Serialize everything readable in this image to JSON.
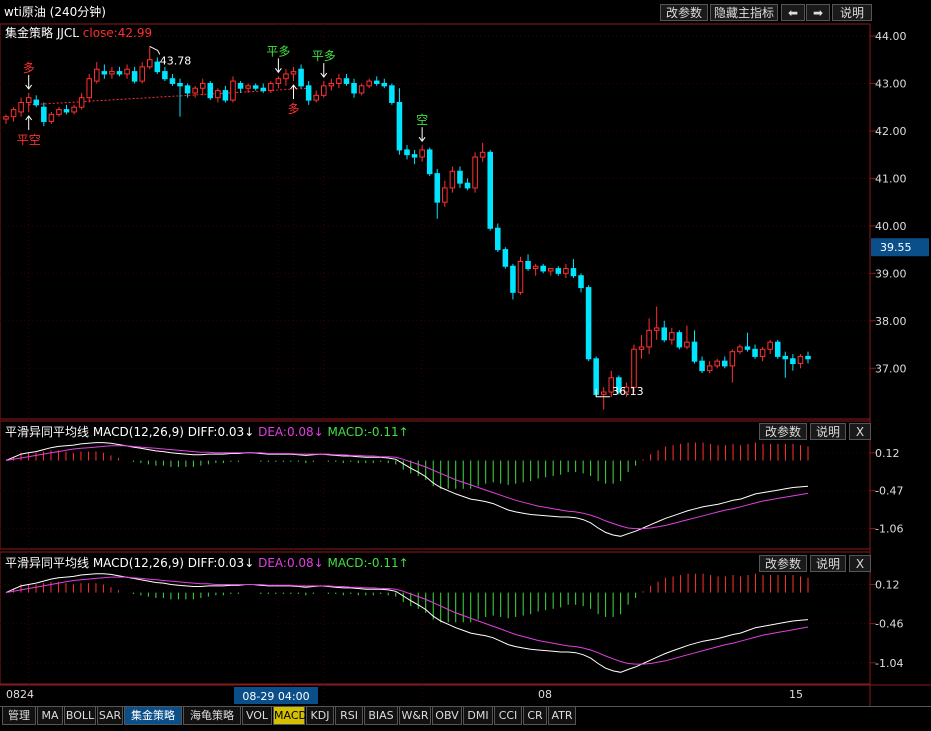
{
  "window_title": "wti原油 (240分钟)",
  "top_buttons": {
    "params": "改参数",
    "hide_indicator": "隐藏主指标",
    "left_arrow": "⬅",
    "right_arrow": "➡",
    "help": "说明"
  },
  "strategy_label": "集金策略 JJCL",
  "strategy_close": "close:42.99",
  "price_tag": "39.55",
  "macd_panels": [
    {
      "title": "平滑异同平均线 MACD(12,26,9)",
      "diff": "DIFF:0.03↓",
      "dea": "DEA:0.08↓",
      "macd": "MACD:-0.11↑",
      "btn_params": "改参数",
      "btn_help": "说明",
      "btn_close": "X"
    },
    {
      "title": "平滑异同平均线 MACD(12,26,9)",
      "diff": "DIFF:0.03↓",
      "dea": "DEA:0.08↓",
      "macd": "MACD:-0.11↑",
      "btn_params": "改参数",
      "btn_help": "说明",
      "btn_close": "X"
    }
  ],
  "time_axis": {
    "labels": [
      "0824",
      "08",
      "15"
    ],
    "cursor": "08-29 04:00"
  },
  "tabs": [
    "管理",
    "MA",
    "BOLL",
    "SAR",
    "集金策略",
    "海龟策略",
    "VOL",
    "MACD",
    "KDJ",
    "RSI",
    "BIAS",
    "W&R",
    "OBV",
    "DMI",
    "CCI",
    "CR",
    "ATR"
  ],
  "active_tab": "集金策略",
  "highlight_tab": "MACD",
  "colors": {
    "up": "#ff3030",
    "down": "#00e5ff",
    "dea": "#e040e0",
    "diff": "#ffffff",
    "hist_pos": "#ff3030",
    "hist_neg": "#40e040",
    "signal_green": "#40e040",
    "signal_red": "#ff3030"
  },
  "chart_data": [
    {
      "type": "candlestick",
      "title": "wti原油 (240分钟)",
      "ylim": [
        36.1,
        44.0
      ],
      "yticks": [
        "44.00",
        "43.00",
        "42.00",
        "41.00",
        "40.00",
        "39.00",
        "38.00",
        "37.00"
      ],
      "candles": [
        {
          "o": 42.25,
          "h": 42.35,
          "l": 42.15,
          "c": 42.3
        },
        {
          "o": 42.3,
          "h": 42.5,
          "l": 42.2,
          "c": 42.45
        },
        {
          "o": 42.4,
          "h": 42.7,
          "l": 42.3,
          "c": 42.6
        },
        {
          "o": 42.6,
          "h": 42.8,
          "l": 42.4,
          "c": 42.7
        },
        {
          "o": 42.65,
          "h": 42.75,
          "l": 42.5,
          "c": 42.55
        },
        {
          "o": 42.5,
          "h": 42.6,
          "l": 42.1,
          "c": 42.2
        },
        {
          "o": 42.2,
          "h": 42.4,
          "l": 42.15,
          "c": 42.35
        },
        {
          "o": 42.35,
          "h": 42.5,
          "l": 42.3,
          "c": 42.45
        },
        {
          "o": 42.45,
          "h": 42.55,
          "l": 42.35,
          "c": 42.4
        },
        {
          "o": 42.4,
          "h": 42.55,
          "l": 42.35,
          "c": 42.5
        },
        {
          "o": 42.5,
          "h": 42.8,
          "l": 42.45,
          "c": 42.7
        },
        {
          "o": 42.7,
          "h": 43.2,
          "l": 42.6,
          "c": 43.1
        },
        {
          "o": 43.05,
          "h": 43.45,
          "l": 43.0,
          "c": 43.3
        },
        {
          "o": 43.25,
          "h": 43.4,
          "l": 43.1,
          "c": 43.2
        },
        {
          "o": 43.2,
          "h": 43.35,
          "l": 43.1,
          "c": 43.25
        },
        {
          "o": 43.25,
          "h": 43.35,
          "l": 43.15,
          "c": 43.2
        },
        {
          "o": 43.2,
          "h": 43.4,
          "l": 43.1,
          "c": 43.3
        },
        {
          "o": 43.25,
          "h": 43.35,
          "l": 43.0,
          "c": 43.05
        },
        {
          "o": 43.05,
          "h": 43.45,
          "l": 43.0,
          "c": 43.35
        },
        {
          "o": 43.35,
          "h": 43.78,
          "l": 43.3,
          "c": 43.5
        },
        {
          "o": 43.45,
          "h": 43.55,
          "l": 43.2,
          "c": 43.25
        },
        {
          "o": 43.25,
          "h": 43.35,
          "l": 43.05,
          "c": 43.1
        },
        {
          "o": 43.1,
          "h": 43.2,
          "l": 42.95,
          "c": 43.0
        },
        {
          "o": 43.0,
          "h": 43.1,
          "l": 42.3,
          "c": 42.95
        },
        {
          "o": 42.95,
          "h": 43.0,
          "l": 42.7,
          "c": 42.8
        },
        {
          "o": 42.8,
          "h": 42.95,
          "l": 42.7,
          "c": 42.9
        },
        {
          "o": 42.9,
          "h": 43.1,
          "l": 42.75,
          "c": 43.0
        },
        {
          "o": 43.0,
          "h": 43.05,
          "l": 42.65,
          "c": 42.7
        },
        {
          "o": 42.7,
          "h": 42.9,
          "l": 42.6,
          "c": 42.85
        },
        {
          "o": 42.85,
          "h": 42.95,
          "l": 42.6,
          "c": 42.65
        },
        {
          "o": 42.65,
          "h": 43.15,
          "l": 42.6,
          "c": 43.05
        },
        {
          "o": 43.0,
          "h": 43.05,
          "l": 42.8,
          "c": 42.9
        },
        {
          "o": 42.9,
          "h": 43.0,
          "l": 42.8,
          "c": 42.95
        },
        {
          "o": 42.95,
          "h": 43.0,
          "l": 42.85,
          "c": 42.9
        },
        {
          "o": 42.9,
          "h": 43.0,
          "l": 42.8,
          "c": 42.85
        },
        {
          "o": 42.85,
          "h": 43.05,
          "l": 42.8,
          "c": 43.0
        },
        {
          "o": 43.0,
          "h": 43.15,
          "l": 42.9,
          "c": 43.1
        },
        {
          "o": 43.1,
          "h": 43.3,
          "l": 42.95,
          "c": 43.2
        },
        {
          "o": 43.2,
          "h": 43.35,
          "l": 43.05,
          "c": 43.25
        },
        {
          "o": 43.3,
          "h": 43.4,
          "l": 42.9,
          "c": 42.95
        },
        {
          "o": 42.95,
          "h": 43.05,
          "l": 42.55,
          "c": 42.65
        },
        {
          "o": 42.65,
          "h": 42.85,
          "l": 42.6,
          "c": 42.75
        },
        {
          "o": 42.75,
          "h": 43.05,
          "l": 42.7,
          "c": 42.95
        },
        {
          "o": 42.95,
          "h": 43.1,
          "l": 42.85,
          "c": 43.0
        },
        {
          "o": 43.0,
          "h": 43.2,
          "l": 42.9,
          "c": 43.1
        },
        {
          "o": 43.1,
          "h": 43.2,
          "l": 42.95,
          "c": 43.0
        },
        {
          "o": 43.0,
          "h": 43.1,
          "l": 42.7,
          "c": 42.8
        },
        {
          "o": 42.8,
          "h": 43.0,
          "l": 42.75,
          "c": 42.95
        },
        {
          "o": 42.95,
          "h": 43.1,
          "l": 42.9,
          "c": 43.05
        },
        {
          "o": 43.05,
          "h": 43.15,
          "l": 42.95,
          "c": 43.0
        },
        {
          "o": 43.0,
          "h": 43.1,
          "l": 42.9,
          "c": 42.95
        },
        {
          "o": 42.95,
          "h": 43.0,
          "l": 42.55,
          "c": 42.6
        },
        {
          "o": 42.6,
          "h": 42.9,
          "l": 41.5,
          "c": 41.6
        },
        {
          "o": 41.6,
          "h": 41.7,
          "l": 41.4,
          "c": 41.5
        },
        {
          "o": 41.5,
          "h": 41.6,
          "l": 41.3,
          "c": 41.45
        },
        {
          "o": 41.45,
          "h": 41.7,
          "l": 41.35,
          "c": 41.6
        },
        {
          "o": 41.6,
          "h": 41.65,
          "l": 41.05,
          "c": 41.1
        },
        {
          "o": 41.1,
          "h": 41.2,
          "l": 40.15,
          "c": 40.5
        },
        {
          "o": 40.5,
          "h": 40.95,
          "l": 40.4,
          "c": 40.8
        },
        {
          "o": 40.8,
          "h": 41.25,
          "l": 40.7,
          "c": 41.15
        },
        {
          "o": 41.15,
          "h": 41.25,
          "l": 40.8,
          "c": 40.9
        },
        {
          "o": 40.9,
          "h": 41.0,
          "l": 40.75,
          "c": 40.8
        },
        {
          "o": 40.8,
          "h": 41.55,
          "l": 40.7,
          "c": 41.45
        },
        {
          "o": 41.45,
          "h": 41.75,
          "l": 41.35,
          "c": 41.55
        },
        {
          "o": 41.55,
          "h": 41.6,
          "l": 39.9,
          "c": 39.95
        },
        {
          "o": 39.95,
          "h": 40.05,
          "l": 39.45,
          "c": 39.5
        },
        {
          "o": 39.5,
          "h": 39.55,
          "l": 39.1,
          "c": 39.15
        },
        {
          "o": 39.15,
          "h": 39.2,
          "l": 38.45,
          "c": 38.6
        },
        {
          "o": 38.6,
          "h": 39.35,
          "l": 38.55,
          "c": 39.25
        },
        {
          "o": 39.25,
          "h": 39.4,
          "l": 39.05,
          "c": 39.1
        },
        {
          "o": 39.1,
          "h": 39.2,
          "l": 38.95,
          "c": 39.15
        },
        {
          "o": 39.15,
          "h": 39.2,
          "l": 39.0,
          "c": 39.05
        },
        {
          "o": 39.05,
          "h": 39.1,
          "l": 38.95,
          "c": 39.1
        },
        {
          "o": 39.1,
          "h": 39.15,
          "l": 38.95,
          "c": 39.0
        },
        {
          "o": 39.0,
          "h": 39.2,
          "l": 38.9,
          "c": 39.1
        },
        {
          "o": 39.1,
          "h": 39.3,
          "l": 38.9,
          "c": 38.95
        },
        {
          "o": 38.95,
          "h": 39.0,
          "l": 38.6,
          "c": 38.7
        },
        {
          "o": 38.7,
          "h": 38.75,
          "l": 37.15,
          "c": 37.2
        },
        {
          "o": 37.2,
          "h": 37.25,
          "l": 36.4,
          "c": 36.45
        },
        {
          "o": 36.45,
          "h": 36.6,
          "l": 36.13,
          "c": 36.5
        },
        {
          "o": 36.5,
          "h": 36.95,
          "l": 36.4,
          "c": 36.8
        },
        {
          "o": 36.8,
          "h": 36.85,
          "l": 36.45,
          "c": 36.5
        },
        {
          "o": 36.5,
          "h": 36.7,
          "l": 36.4,
          "c": 36.6
        },
        {
          "o": 36.6,
          "h": 37.5,
          "l": 36.5,
          "c": 37.4
        },
        {
          "o": 37.4,
          "h": 37.7,
          "l": 37.2,
          "c": 37.45
        },
        {
          "o": 37.45,
          "h": 38.05,
          "l": 37.3,
          "c": 37.8
        },
        {
          "o": 37.8,
          "h": 38.3,
          "l": 37.6,
          "c": 37.85
        },
        {
          "o": 37.85,
          "h": 38.0,
          "l": 37.55,
          "c": 37.6
        },
        {
          "o": 37.6,
          "h": 37.85,
          "l": 37.5,
          "c": 37.75
        },
        {
          "o": 37.75,
          "h": 37.8,
          "l": 37.4,
          "c": 37.45
        },
        {
          "o": 37.45,
          "h": 37.9,
          "l": 37.4,
          "c": 37.55
        },
        {
          "o": 37.55,
          "h": 37.8,
          "l": 37.1,
          "c": 37.15
        },
        {
          "o": 37.15,
          "h": 37.25,
          "l": 36.9,
          "c": 36.95
        },
        {
          "o": 36.95,
          "h": 37.15,
          "l": 36.9,
          "c": 37.05
        },
        {
          "o": 37.05,
          "h": 37.2,
          "l": 37.0,
          "c": 37.15
        },
        {
          "o": 37.15,
          "h": 37.25,
          "l": 37.0,
          "c": 37.05
        },
        {
          "o": 37.05,
          "h": 37.4,
          "l": 36.7,
          "c": 37.35
        },
        {
          "o": 37.35,
          "h": 37.5,
          "l": 37.3,
          "c": 37.45
        },
        {
          "o": 37.45,
          "h": 37.75,
          "l": 37.35,
          "c": 37.4
        },
        {
          "o": 37.4,
          "h": 37.5,
          "l": 37.2,
          "c": 37.25
        },
        {
          "o": 37.25,
          "h": 37.45,
          "l": 37.15,
          "c": 37.4
        },
        {
          "o": 37.4,
          "h": 37.6,
          "l": 37.3,
          "c": 37.55
        },
        {
          "o": 37.55,
          "h": 37.6,
          "l": 37.2,
          "c": 37.25
        },
        {
          "o": 37.25,
          "h": 37.35,
          "l": 36.8,
          "c": 37.2
        },
        {
          "o": 37.2,
          "h": 37.3,
          "l": 36.95,
          "c": 37.1
        },
        {
          "o": 37.1,
          "h": 37.3,
          "l": 37.0,
          "c": 37.25
        },
        {
          "o": 37.25,
          "h": 37.35,
          "l": 37.1,
          "c": 37.2
        }
      ],
      "annotations": {
        "high_label": "43.78",
        "low_label": "36.13",
        "high_index": 19,
        "low_index": 78
      },
      "signals": [
        {
          "index": 3,
          "text": "多",
          "color": "red",
          "pos": "above"
        },
        {
          "index": 3,
          "text": "平空",
          "color": "red",
          "pos": "below"
        },
        {
          "index": 36,
          "text": "平多",
          "color": "green",
          "pos": "above"
        },
        {
          "index": 38,
          "text": "多",
          "color": "red",
          "pos": "below"
        },
        {
          "index": 42,
          "text": "平多",
          "color": "green",
          "pos": "above"
        },
        {
          "index": 55,
          "text": "空",
          "color": "green",
          "pos": "above"
        }
      ],
      "dashed_line_value": 42.9
    },
    {
      "type": "macd",
      "yticks": [
        "0.12",
        "-0.47",
        "-1.06"
      ],
      "ylim": [
        -1.3,
        0.32
      ],
      "diff": [
        0.0,
        0.05,
        0.1,
        0.12,
        0.14,
        0.17,
        0.2,
        0.22,
        0.23,
        0.24,
        0.26,
        0.27,
        0.28,
        0.28,
        0.27,
        0.25,
        0.23,
        0.21,
        0.19,
        0.17,
        0.15,
        0.14,
        0.12,
        0.11,
        0.1,
        0.09,
        0.09,
        0.1,
        0.1,
        0.1,
        0.11,
        0.11,
        0.12,
        0.12,
        0.11,
        0.1,
        0.1,
        0.1,
        0.1,
        0.09,
        0.08,
        0.09,
        0.1,
        0.09,
        0.08,
        0.07,
        0.07,
        0.06,
        0.05,
        0.05,
        0.05,
        0.04,
        0.02,
        -0.05,
        -0.12,
        -0.18,
        -0.25,
        -0.35,
        -0.42,
        -0.47,
        -0.52,
        -0.56,
        -0.6,
        -0.62,
        -0.64,
        -0.67,
        -0.72,
        -0.77,
        -0.8,
        -0.82,
        -0.84,
        -0.85,
        -0.86,
        -0.87,
        -0.88,
        -0.88,
        -0.89,
        -0.92,
        -0.97,
        -1.05,
        -1.12,
        -1.16,
        -1.18,
        -1.14,
        -1.1,
        -1.05,
        -1.0,
        -0.95,
        -0.9,
        -0.86,
        -0.82,
        -0.78,
        -0.75,
        -0.72,
        -0.7,
        -0.68,
        -0.65,
        -0.62,
        -0.6,
        -0.56,
        -0.52,
        -0.5,
        -0.48,
        -0.46,
        -0.44,
        -0.42,
        -0.41,
        -0.4
      ],
      "dea": [
        0.0,
        0.02,
        0.04,
        0.06,
        0.08,
        0.1,
        0.12,
        0.14,
        0.16,
        0.18,
        0.19,
        0.2,
        0.21,
        0.22,
        0.23,
        0.23,
        0.23,
        0.22,
        0.21,
        0.2,
        0.19,
        0.18,
        0.17,
        0.16,
        0.15,
        0.14,
        0.13,
        0.13,
        0.12,
        0.12,
        0.12,
        0.12,
        0.12,
        0.12,
        0.12,
        0.11,
        0.11,
        0.11,
        0.11,
        0.1,
        0.1,
        0.1,
        0.1,
        0.1,
        0.09,
        0.09,
        0.08,
        0.08,
        0.07,
        0.07,
        0.06,
        0.06,
        0.05,
        0.02,
        -0.02,
        -0.06,
        -0.1,
        -0.15,
        -0.2,
        -0.25,
        -0.3,
        -0.34,
        -0.38,
        -0.42,
        -0.46,
        -0.5,
        -0.54,
        -0.58,
        -0.62,
        -0.65,
        -0.68,
        -0.71,
        -0.73,
        -0.75,
        -0.77,
        -0.79,
        -0.8,
        -0.82,
        -0.85,
        -0.89,
        -0.94,
        -0.98,
        -1.02,
        -1.05,
        -1.06,
        -1.06,
        -1.05,
        -1.03,
        -1.01,
        -0.98,
        -0.95,
        -0.92,
        -0.89,
        -0.86,
        -0.83,
        -0.8,
        -0.77,
        -0.75,
        -0.72,
        -0.69,
        -0.66,
        -0.63,
        -0.61,
        -0.59,
        -0.57,
        -0.55,
        -0.53,
        -0.51
      ]
    },
    {
      "type": "macd",
      "yticks": [
        "0.12",
        "-0.46",
        "-1.04"
      ],
      "ylim": [
        -1.28,
        0.32
      ],
      "diff_ref": "same as panel 1"
    }
  ]
}
